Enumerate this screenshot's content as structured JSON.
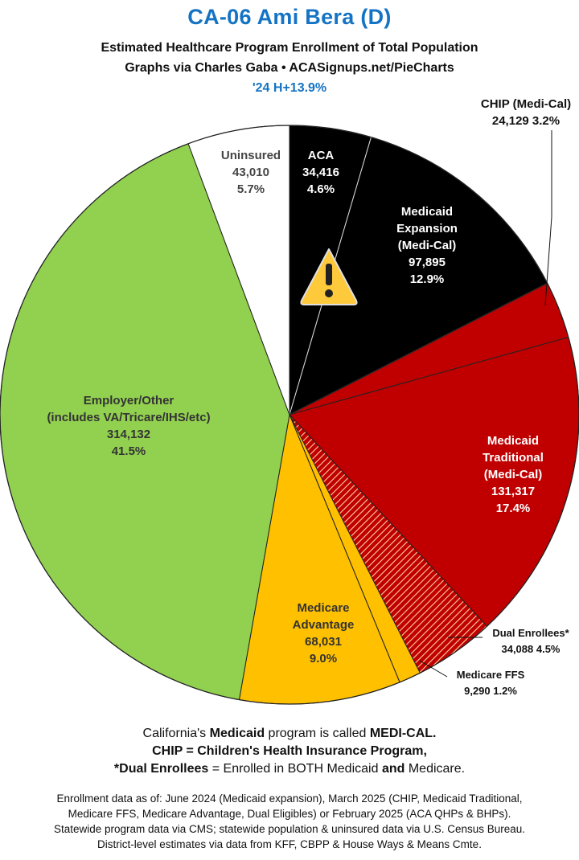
{
  "header": {
    "title": "CA-06 Ami Bera (D)",
    "subtitle_line1": "Estimated Healthcare Program Enrollment of Total Population",
    "subtitle_line2": "Graphs via Charles Gaba  •  ACASignups.net/PieCharts",
    "tag": "'24 H+13.9%"
  },
  "chart_data": {
    "type": "pie",
    "title": "CA-06 Ami Bera (D)",
    "slices": [
      {
        "label": [
          "ACA"
        ],
        "value": 34416,
        "value_text": "34,416",
        "percent": "4.6%",
        "color": "#000000",
        "text_color": "#ffffff"
      },
      {
        "label": [
          "Medicaid",
          "Expansion",
          "(Medi-Cal)"
        ],
        "value": 97895,
        "value_text": "97,895",
        "percent": "12.9%",
        "color": "#000000",
        "text_color": "#ffffff"
      },
      {
        "label": [
          "CHIP (Medi-Cal)"
        ],
        "value": 24129,
        "value_text": "24,129",
        "percent": "3.2%",
        "color": "#c00000",
        "text_color": "#111111"
      },
      {
        "label": [
          "Medicaid",
          "Traditional",
          "(Medi-Cal)"
        ],
        "value": 131317,
        "value_text": "131,317",
        "percent": "17.4%",
        "color": "#c00000",
        "text_color": "#ffffff"
      },
      {
        "label": [
          "Dual Enrollees*"
        ],
        "value": 34088,
        "value_text": "34,088",
        "percent": "4.5%",
        "color": "#c00000",
        "pattern": "hatched",
        "text_color": "#111111"
      },
      {
        "label": [
          "Medicare FFS"
        ],
        "value": 9290,
        "value_text": "9,290",
        "percent": "1.2%",
        "color": "#ffc000",
        "text_color": "#111111"
      },
      {
        "label": [
          "Medicare",
          "Advantage"
        ],
        "value": 68031,
        "value_text": "68,031",
        "percent": "9.0%",
        "color": "#ffc000",
        "text_color": "#333333"
      },
      {
        "label": [
          "Employer/Other",
          "(includes VA/Tricare/IHS/etc)"
        ],
        "value": 314132,
        "value_text": "314,132",
        "percent": "41.5%",
        "color": "#92d050",
        "text_color": "#333333"
      },
      {
        "label": [
          "Uninsured"
        ],
        "value": 43010,
        "value_text": "43,010",
        "percent": "5.7%",
        "color": "#ffffff",
        "text_color": "#444444"
      }
    ],
    "annotations": [
      "warning-icon"
    ]
  },
  "notes": {
    "line1_pre": "California's ",
    "line1_bold1": "Medicaid",
    "line1_mid": " program is called ",
    "line1_bold2": "MEDI-CAL.",
    "line2": "CHIP = Children's Health Insurance Program,",
    "line3_bold1": "*Dual Enrollees",
    "line3_mid": " = Enrolled in BOTH Medicaid ",
    "line3_bold2": "and",
    "line3_post": " Medicare."
  },
  "footer": {
    "line1": "Enrollment data as of: June 2024 (Medicaid expansion), March 2025 (CHIP, Medicaid Traditional,",
    "line2": "Medicare FFS, Medicare Advantage, Dual Eligibles) or February 2025 (ACA QHPs & BHPs).",
    "line3": "Statewide program data via CMS; statewide population & uninsured data via U.S. Census Bureau.",
    "line4": "District-level estimates via data from KFF, CBPP & House Ways & Means Cmte."
  }
}
